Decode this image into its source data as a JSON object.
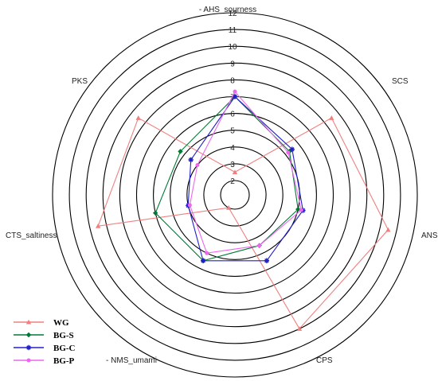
{
  "chart_data": {
    "type": "radar",
    "axes": [
      "- AHS_sourness",
      "SCS",
      "ANS",
      "CPS",
      "- NMS_umami",
      "CTS_saltiness",
      "PKS"
    ],
    "rlim": [
      0,
      12
    ],
    "ring_ticks": [
      2,
      3,
      4,
      5,
      6,
      7,
      8,
      9,
      10,
      11,
      12
    ],
    "series": [
      {
        "name": "WG",
        "color": "#f08080",
        "marker": "triangle",
        "values": [
          2.5,
          8.5,
          10.5,
          10,
          2,
          9.5,
          8.5
        ]
      },
      {
        "name": "BG-S",
        "color": "#007a33",
        "marker": "diamond",
        "values": [
          7,
          5.3,
          5,
          4.5,
          5.5,
          6,
          5.3
        ]
      },
      {
        "name": "BG-C",
        "color": "#2020c8",
        "marker": "star",
        "values": [
          7,
          5.5,
          5.3,
          5.5,
          5.5,
          4,
          4.5
        ]
      },
      {
        "name": "BG-P",
        "color": "#ee66ee",
        "marker": "circle",
        "values": [
          7.3,
          5.2,
          5.2,
          4.5,
          5,
          3.9,
          4
        ]
      }
    ]
  }
}
